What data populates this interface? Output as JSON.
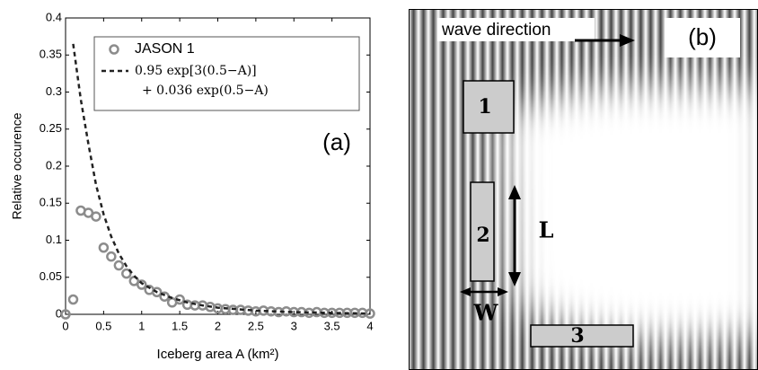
{
  "chart_data": {
    "type": "scatter",
    "xlabel": "Iceberg area  A (km²)",
    "ylabel": "Relative occurence",
    "annotation": "(a)",
    "xlim": [
      0,
      4
    ],
    "ylim": [
      0,
      0.4
    ],
    "xticks": [
      0,
      0.5,
      1,
      1.5,
      2,
      2.5,
      3,
      3.5,
      4
    ],
    "yticks": [
      0,
      0.05,
      0.1,
      0.15,
      0.2,
      0.25,
      0.3,
      0.35,
      0.4
    ],
    "series": [
      {
        "name": [
          "JASON 1"
        ],
        "type": "scatter",
        "color": "#8c8c8c",
        "x": [
          0,
          0.1,
          0.2,
          0.3,
          0.4,
          0.5,
          0.6,
          0.7,
          0.8,
          0.9,
          1,
          1.1,
          1.2,
          1.3,
          1.4,
          1.5,
          1.6,
          1.7,
          1.8,
          1.9,
          2,
          2.1,
          2.2,
          2.3,
          2.4,
          2.5,
          2.6,
          2.7,
          2.8,
          2.9,
          3,
          3.1,
          3.2,
          3.3,
          3.4,
          3.5,
          3.6,
          3.7,
          3.8,
          3.9,
          4
        ],
        "values": [
          0,
          0.02,
          0.14,
          0.137,
          0.132,
          0.09,
          0.078,
          0.066,
          0.055,
          0.045,
          0.04,
          0.033,
          0.03,
          0.024,
          0.016,
          0.02,
          0.013,
          0.012,
          0.012,
          0.01,
          0.008,
          0.007,
          0.006,
          0.006,
          0.005,
          0.004,
          0.005,
          0.004,
          0.003,
          0.004,
          0.003,
          0.003,
          0.002,
          0.003,
          0.002,
          0.002,
          0.002,
          0.002,
          0.002,
          0.002,
          0.001
        ]
      },
      {
        "name": [
          "0.95 exp[3(0.5−A)]",
          "+ 0.036 exp(0.5−A)"
        ],
        "type": "line",
        "color": "#222222",
        "x": [
          0.1,
          0.2,
          0.3,
          0.4,
          0.5,
          0.6,
          0.7,
          0.8,
          0.9,
          1,
          1.2,
          1.4,
          1.6,
          1.8,
          2,
          2.5,
          3,
          3.5,
          4
        ],
        "values": [
          0.365,
          0.29,
          0.23,
          0.175,
          0.135,
          0.105,
          0.082,
          0.065,
          0.052,
          0.042,
          0.03,
          0.022,
          0.016,
          0.012,
          0.009,
          0.005,
          0.003,
          0.002,
          0.001
        ]
      }
    ]
  },
  "diagram": {
    "label": "(b)",
    "wave_direction": "wave direction",
    "blocks": [
      "1",
      "2",
      "3"
    ],
    "length_label": "L",
    "width_label": "W"
  }
}
